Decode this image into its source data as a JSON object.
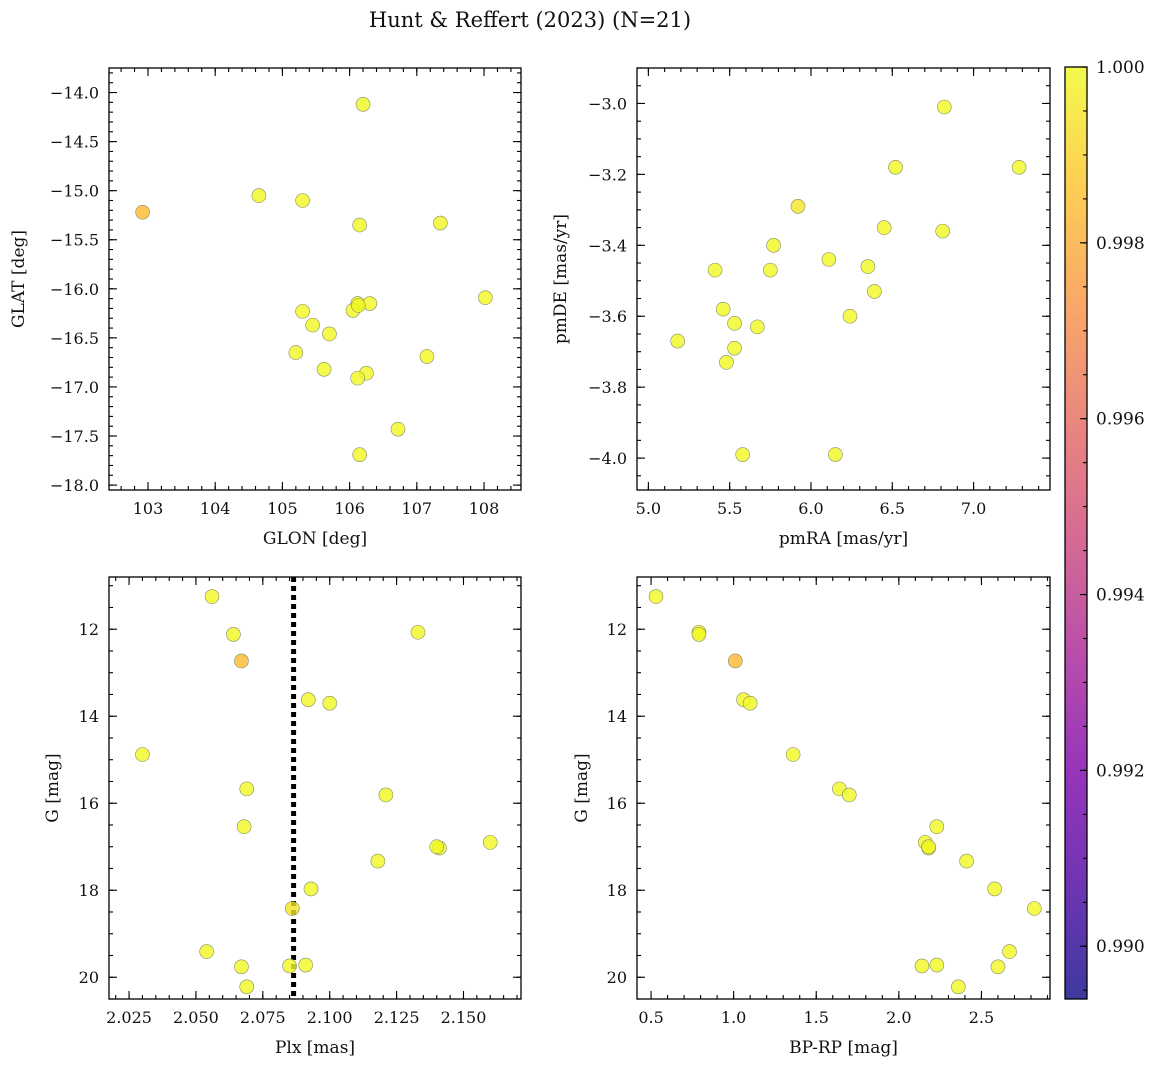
{
  "figure": {
    "title": "Hunt & Reffert (2023) (N=21)"
  },
  "colorbar": {
    "cmap": "plasma",
    "range": [
      0.9894,
      1.0
    ],
    "ticks": [
      0.99,
      0.992,
      0.994,
      0.996,
      0.998,
      1.0
    ],
    "tick_labels": [
      "0.990",
      "0.992",
      "0.994",
      "0.996",
      "0.998",
      "1.000"
    ]
  },
  "chart_data": [
    {
      "type": "scatter",
      "name": "glon-glat",
      "xlabel": "GLON [deg]",
      "ylabel": "GLAT [deg]",
      "xlim": [
        102.42,
        108.55
      ],
      "ylim": [
        -18.05,
        -13.75
      ],
      "y_inverted": false,
      "xticks": [
        103,
        104,
        105,
        106,
        107,
        108
      ],
      "xtick_labels": [
        "103",
        "104",
        "105",
        "106",
        "107",
        "108"
      ],
      "xminor": 0.2,
      "yticks": [
        -18.0,
        -17.5,
        -17.0,
        -16.5,
        -16.0,
        -15.5,
        -15.0,
        -14.5,
        -14.0
      ],
      "ytick_labels": [
        "−18.0",
        "−17.5",
        "−17.0",
        "−16.5",
        "−16.0",
        "−15.5",
        "−15.0",
        "−14.5",
        "−14.0"
      ],
      "yminor": 0.1,
      "x": [
        102.92,
        104.65,
        105.3,
        106.2,
        106.15,
        107.35,
        108.02,
        106.12,
        106.3,
        105.3,
        106.05,
        105.45,
        105.2,
        105.7,
        107.15,
        105.62,
        106.25,
        106.12,
        106.72,
        106.15,
        106.13
      ],
      "y": [
        -15.22,
        -15.05,
        -15.1,
        -14.12,
        -15.35,
        -15.33,
        -16.09,
        -16.15,
        -16.15,
        -16.23,
        -16.22,
        -16.37,
        -16.65,
        -16.46,
        -16.69,
        -16.82,
        -16.86,
        -16.91,
        -17.43,
        -17.69,
        -16.17
      ],
      "prob": [
        0.9984,
        1.0,
        1.0,
        1.0,
        1.0,
        1.0,
        1.0,
        1.0,
        1.0,
        1.0,
        1.0,
        1.0,
        1.0,
        1.0,
        1.0,
        1.0,
        1.0,
        1.0,
        1.0,
        1.0,
        1.0
      ]
    },
    {
      "type": "scatter",
      "name": "pmra-pmde",
      "xlabel": "pmRA [mas/yr]",
      "ylabel": "pmDE [mas/yr]",
      "xlim": [
        4.93,
        7.47
      ],
      "ylim": [
        -4.09,
        -2.9
      ],
      "y_inverted": false,
      "xticks": [
        5.0,
        5.5,
        6.0,
        6.5,
        7.0
      ],
      "xtick_labels": [
        "5.0",
        "5.5",
        "6.0",
        "6.5",
        "7.0"
      ],
      "xminor": 0.1,
      "yticks": [
        -4.0,
        -3.8,
        -3.6,
        -3.4,
        -3.2,
        -3.0
      ],
      "ytick_labels": [
        "−4.0",
        "−3.8",
        "−3.6",
        "−3.4",
        "−3.2",
        "−3.0"
      ],
      "yminor": 0.05,
      "x": [
        6.82,
        6.52,
        7.28,
        5.92,
        6.45,
        6.81,
        5.77,
        6.11,
        5.41,
        5.75,
        6.35,
        6.39,
        5.46,
        5.53,
        6.24,
        5.67,
        5.18,
        5.53,
        5.48,
        5.58,
        6.15
      ],
      "y": [
        -3.01,
        -3.18,
        -3.18,
        -3.29,
        -3.35,
        -3.36,
        -3.4,
        -3.44,
        -3.47,
        -3.47,
        -3.46,
        -3.53,
        -3.58,
        -3.62,
        -3.6,
        -3.63,
        -3.67,
        -3.69,
        -3.73,
        -3.99,
        -3.99
      ],
      "prob": [
        1.0,
        1.0,
        1.0,
        0.9995,
        1.0,
        1.0,
        1.0,
        1.0,
        1.0,
        1.0,
        1.0,
        1.0,
        1.0,
        1.0,
        1.0,
        1.0,
        1.0,
        1.0,
        1.0,
        1.0,
        1.0
      ]
    },
    {
      "type": "scatter",
      "name": "plx-g",
      "xlabel": "Plx [mas]",
      "ylabel": "G [mag]",
      "xlim": [
        2.0175,
        2.1715
      ],
      "ylim": [
        20.5,
        10.8
      ],
      "y_inverted": true,
      "xticks": [
        2.025,
        2.05,
        2.075,
        2.1,
        2.125,
        2.15
      ],
      "xtick_labels": [
        "2.025",
        "2.050",
        "2.075",
        "2.100",
        "2.125",
        "2.150"
      ],
      "xminor": 0.005,
      "yticks": [
        12,
        14,
        16,
        18,
        20
      ],
      "ytick_labels": [
        "12",
        "14",
        "16",
        "18",
        "20"
      ],
      "yminor": 0.5,
      "vline": {
        "x": 2.0865,
        "style": "dotted"
      },
      "x": [
        2.056,
        2.064,
        2.133,
        2.067,
        2.092,
        2.1,
        2.03,
        2.069,
        2.121,
        2.068,
        2.16,
        2.141,
        2.14,
        2.118,
        2.093,
        2.086,
        2.054,
        2.067,
        2.085,
        2.091,
        2.069
      ],
      "y": [
        11.25,
        12.12,
        12.07,
        12.73,
        13.62,
        13.7,
        14.88,
        15.67,
        15.81,
        16.54,
        16.9,
        17.03,
        17.0,
        17.33,
        17.97,
        18.42,
        19.41,
        19.76,
        19.74,
        19.72,
        20.22
      ],
      "prob": [
        1.0,
        1.0,
        1.0,
        0.9984,
        1.0,
        1.0,
        1.0,
        1.0,
        1.0,
        1.0,
        1.0,
        1.0,
        1.0,
        1.0,
        1.0,
        0.9995,
        1.0,
        1.0,
        1.0,
        1.0,
        1.0
      ]
    },
    {
      "type": "scatter",
      "name": "bprp-g",
      "xlabel": "BP-RP [mag]",
      "ylabel": "G [mag]",
      "xlim": [
        0.415,
        2.915
      ],
      "ylim": [
        20.5,
        10.8
      ],
      "y_inverted": true,
      "xticks": [
        0.5,
        1.0,
        1.5,
        2.0,
        2.5
      ],
      "xtick_labels": [
        "0.5",
        "1.0",
        "1.5",
        "2.0",
        "2.5"
      ],
      "xminor": 0.1,
      "yticks": [
        12,
        14,
        16,
        18,
        20
      ],
      "ytick_labels": [
        "12",
        "14",
        "16",
        "18",
        "20"
      ],
      "yminor": 0.5,
      "x": [
        0.53,
        0.79,
        0.79,
        1.01,
        1.06,
        1.1,
        1.36,
        1.64,
        1.7,
        2.23,
        2.16,
        2.18,
        2.18,
        2.41,
        2.58,
        2.82,
        2.67,
        2.6,
        2.14,
        2.23,
        2.36
      ],
      "y": [
        11.25,
        12.07,
        12.12,
        12.73,
        13.62,
        13.7,
        14.88,
        15.67,
        15.81,
        16.54,
        16.9,
        17.03,
        17.0,
        17.33,
        17.97,
        18.42,
        19.41,
        19.76,
        19.74,
        19.72,
        20.22
      ],
      "prob": [
        1.0,
        1.0,
        1.0,
        0.9984,
        1.0,
        1.0,
        1.0,
        1.0,
        1.0,
        1.0,
        1.0,
        1.0,
        1.0,
        1.0,
        1.0,
        1.0,
        1.0,
        1.0,
        1.0,
        1.0,
        1.0
      ]
    }
  ]
}
